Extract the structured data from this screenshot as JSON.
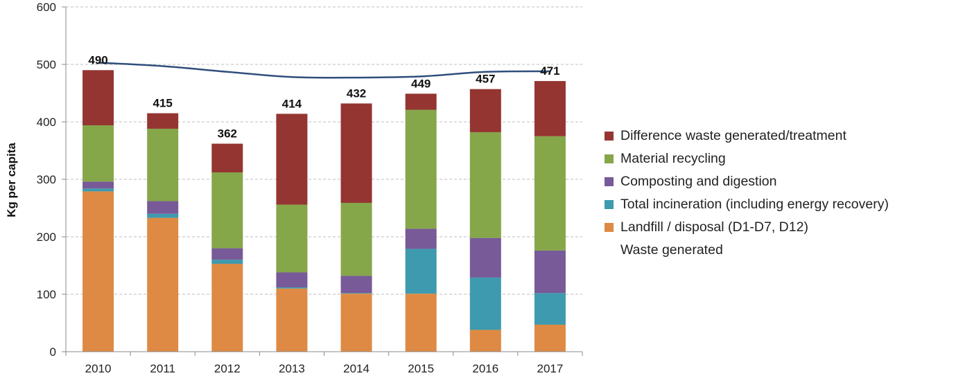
{
  "chart_data": {
    "type": "bar",
    "stacked": true,
    "title": "",
    "xlabel": "",
    "ylabel": "Kg per capita",
    "ylim": [
      0,
      600
    ],
    "yticks": [
      0,
      100,
      200,
      300,
      400,
      500,
      600
    ],
    "grid": true,
    "legend_position": "right",
    "categories": [
      "2010",
      "2011",
      "2012",
      "2013",
      "2014",
      "2015",
      "2016",
      "2017"
    ],
    "series": [
      {
        "name": "Landfill / disposal (D1-D7, D12)",
        "color": "#DE8A44",
        "values": [
          279,
          233,
          153,
          110,
          101,
          101,
          38,
          47
        ]
      },
      {
        "name": "Total incineration (including energy recovery)",
        "color": "#3E9AAE",
        "values": [
          5,
          7,
          7,
          2,
          1,
          78,
          91,
          55
        ]
      },
      {
        "name": "Composting and digestion",
        "color": "#775A97",
        "values": [
          12,
          22,
          20,
          26,
          30,
          35,
          69,
          74
        ]
      },
      {
        "name": "Material recycling",
        "color": "#86A64A",
        "values": [
          98,
          126,
          132,
          118,
          127,
          207,
          184,
          199
        ]
      },
      {
        "name": "Difference waste generated/treatment",
        "color": "#943532",
        "values": [
          96,
          27,
          50,
          158,
          173,
          28,
          75,
          96
        ]
      },
      {
        "name": "Waste generated",
        "type": "line",
        "color": "#2E4E7C",
        "values": [
          503,
          497,
          487,
          478,
          477,
          479,
          487,
          488
        ]
      }
    ],
    "totals": [
      490,
      415,
      362,
      414,
      432,
      449,
      457,
      471
    ],
    "legend_order": [
      "Difference waste generated/treatment",
      "Material recycling",
      "Composting and digestion",
      "Total incineration (including energy recovery)",
      "Landfill / disposal (D1-D7, D12)",
      "Waste generated"
    ]
  }
}
